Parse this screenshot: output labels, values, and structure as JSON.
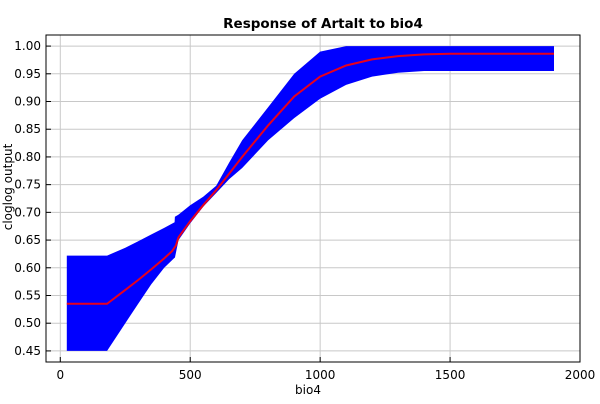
{
  "chart_data": {
    "type": "line",
    "title": "Response of Artalt to bio4",
    "xlabel": "bio4",
    "ylabel": "cloglog output",
    "xlim": [
      -55,
      2000
    ],
    "ylim": [
      0.43,
      1.02
    ],
    "xticks": [
      0,
      500,
      1000,
      1500,
      2000
    ],
    "yticks": [
      0.45,
      0.5,
      0.55,
      0.6,
      0.65,
      0.7,
      0.75,
      0.8,
      0.85,
      0.9,
      0.95,
      1.0
    ],
    "grid": true,
    "colors": {
      "band": "#0000ff",
      "mean": "#e8001c"
    },
    "series": [
      {
        "role": "mean response",
        "x": [
          25,
          180,
          250,
          300,
          350,
          400,
          430,
          445,
          455,
          500,
          550,
          600,
          650,
          700,
          800,
          900,
          1000,
          1100,
          1200,
          1300,
          1400,
          1500,
          1900
        ],
        "y": [
          0.535,
          0.535,
          0.56,
          0.578,
          0.597,
          0.617,
          0.63,
          0.64,
          0.655,
          0.684,
          0.713,
          0.74,
          0.77,
          0.8,
          0.857,
          0.909,
          0.945,
          0.965,
          0.976,
          0.982,
          0.985,
          0.986,
          0.986
        ]
      },
      {
        "role": "variability band",
        "x": [
          25,
          180,
          250,
          300,
          350,
          400,
          440,
          441,
          455,
          500,
          550,
          600,
          650,
          700,
          800,
          900,
          1000,
          1100,
          1200,
          1300,
          1400,
          1500,
          1900
        ],
        "lower": [
          0.45,
          0.45,
          0.5,
          0.535,
          0.57,
          0.6,
          0.618,
          0.618,
          0.65,
          0.68,
          0.71,
          0.735,
          0.76,
          0.78,
          0.83,
          0.87,
          0.905,
          0.93,
          0.945,
          0.952,
          0.955,
          0.955,
          0.955
        ],
        "upper": [
          0.622,
          0.622,
          0.636,
          0.648,
          0.66,
          0.672,
          0.682,
          0.692,
          0.696,
          0.713,
          0.728,
          0.748,
          0.79,
          0.83,
          0.89,
          0.95,
          0.99,
          1.0,
          1.0,
          1.0,
          1.0,
          1.0,
          1.0
        ]
      }
    ]
  }
}
